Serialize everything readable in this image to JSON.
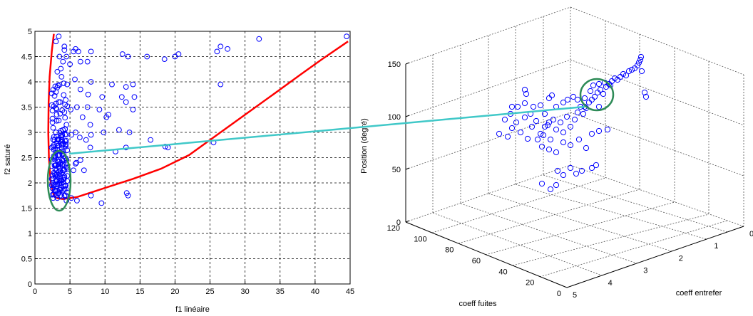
{
  "chart_data": [
    {
      "type": "scatter",
      "title": "",
      "xlabel": "f1 linéaire",
      "ylabel": "f2 saturé",
      "xlim": [
        0,
        45
      ],
      "ylim": [
        0,
        5
      ],
      "xticks": [
        "0",
        "5",
        "10",
        "15",
        "20",
        "25",
        "30",
        "35",
        "40",
        "45"
      ],
      "yticks": [
        "0",
        "0.5",
        "1",
        "1.5",
        "2",
        "2.5",
        "3",
        "3.5",
        "4",
        "4.5",
        "5"
      ],
      "grid": true,
      "marker_color": "#0000ff",
      "curve_color": "#ff0000",
      "highlight_color": "#2e8b57",
      "points": [
        [
          3.0,
          4.8
        ],
        [
          3.4,
          4.9
        ],
        [
          4.2,
          4.7
        ],
        [
          5.5,
          4.6
        ],
        [
          5.8,
          4.65
        ],
        [
          6.2,
          4.6
        ],
        [
          8,
          4.6
        ],
        [
          12.5,
          4.55
        ],
        [
          13.3,
          4.5
        ],
        [
          16,
          4.5
        ],
        [
          18.5,
          4.45
        ],
        [
          20,
          4.5
        ],
        [
          20.5,
          4.55
        ],
        [
          26,
          4.6
        ],
        [
          26.5,
          4.7
        ],
        [
          27.5,
          4.65
        ],
        [
          32,
          4.85
        ],
        [
          44.5,
          4.9
        ],
        [
          3.5,
          4.5
        ],
        [
          4.5,
          4.5
        ],
        [
          4.0,
          4.4
        ],
        [
          5.0,
          4.35
        ],
        [
          6.5,
          4.4
        ],
        [
          7.5,
          4.4
        ],
        [
          5.7,
          4.05
        ],
        [
          8,
          4.0
        ],
        [
          11,
          3.95
        ],
        [
          13,
          3.9
        ],
        [
          14,
          3.95
        ],
        [
          26.5,
          3.95
        ],
        [
          3.2,
          4.2
        ],
        [
          3.8,
          4.1
        ],
        [
          4.6,
          3.95
        ],
        [
          6.5,
          3.85
        ],
        [
          7.6,
          3.75
        ],
        [
          9.6,
          3.7
        ],
        [
          12.4,
          3.7
        ],
        [
          14.2,
          3.7
        ],
        [
          13,
          3.6
        ],
        [
          3.4,
          3.6
        ],
        [
          4.3,
          3.55
        ],
        [
          5.1,
          3.45
        ],
        [
          6.0,
          3.5
        ],
        [
          7.5,
          3.5
        ],
        [
          9.2,
          3.45
        ],
        [
          10.5,
          3.35
        ],
        [
          14,
          3.45
        ],
        [
          3.1,
          3.35
        ],
        [
          6.8,
          3.3
        ],
        [
          10.2,
          3.3
        ],
        [
          7.9,
          3.15
        ],
        [
          12,
          3.05
        ],
        [
          13.5,
          3.0
        ],
        [
          9.8,
          3.0
        ],
        [
          3.0,
          3.0
        ],
        [
          4.0,
          3.05
        ],
        [
          5.2,
          2.95
        ],
        [
          5.8,
          3.0
        ],
        [
          6.4,
          2.9
        ],
        [
          8,
          2.95
        ],
        [
          7.3,
          2.85
        ],
        [
          16.5,
          2.85
        ],
        [
          3.3,
          2.85
        ],
        [
          4.4,
          2.75
        ],
        [
          7.9,
          2.7
        ],
        [
          13,
          2.7
        ],
        [
          18.6,
          2.72
        ],
        [
          19,
          2.7
        ],
        [
          25.5,
          2.8
        ],
        [
          11.5,
          2.62
        ],
        [
          6.5,
          2.45
        ],
        [
          5.9,
          2.4
        ],
        [
          5.8,
          2.38
        ],
        [
          3.9,
          2.45
        ],
        [
          4.6,
          2.3
        ],
        [
          5.5,
          2.25
        ],
        [
          7,
          2.25
        ],
        [
          2.6,
          1.7
        ],
        [
          2.8,
          1.85
        ],
        [
          3.0,
          1.75
        ],
        [
          3.2,
          1.7
        ],
        [
          3.4,
          1.8
        ],
        [
          3.5,
          2.0
        ],
        [
          3.7,
          1.9
        ],
        [
          3.8,
          2.05
        ],
        [
          4.0,
          1.85
        ],
        [
          2.7,
          2.2
        ],
        [
          2.9,
          2.35
        ],
        [
          3.1,
          2.25
        ],
        [
          3.3,
          2.15
        ],
        [
          3.6,
          2.3
        ],
        [
          3.9,
          2.2
        ],
        [
          2.8,
          2.5
        ],
        [
          3.0,
          2.6
        ],
        [
          3.2,
          2.45
        ],
        [
          3.5,
          2.55
        ],
        [
          3.7,
          2.4
        ],
        [
          4.2,
          2.1
        ],
        [
          4.4,
          1.95
        ],
        [
          2.6,
          2.0
        ],
        [
          3.0,
          2.05
        ],
        [
          3.4,
          2.1
        ],
        [
          3.6,
          1.75
        ],
        [
          6.0,
          1.65
        ],
        [
          8.0,
          1.75
        ],
        [
          9.5,
          1.6
        ],
        [
          13.1,
          1.8
        ],
        [
          13.3,
          1.75
        ],
        [
          4.5,
          1.65
        ],
        [
          5.2,
          1.7
        ]
      ],
      "curve_a": [
        [
          3.1,
          1.7
        ],
        [
          2.7,
          1.75
        ],
        [
          2.25,
          2.0
        ],
        [
          2.0,
          2.5
        ],
        [
          1.9,
          3.0
        ],
        [
          1.95,
          3.6
        ],
        [
          2.1,
          4.1
        ],
        [
          2.4,
          4.6
        ],
        [
          2.7,
          4.95
        ]
      ],
      "curve_b": [
        [
          3.1,
          1.7
        ],
        [
          4,
          1.68
        ],
        [
          6,
          1.72
        ],
        [
          10,
          1.9
        ],
        [
          14,
          2.08
        ],
        [
          18,
          2.28
        ],
        [
          22,
          2.55
        ],
        [
          26,
          2.95
        ],
        [
          30,
          3.35
        ],
        [
          34,
          3.75
        ],
        [
          38,
          4.15
        ],
        [
          41,
          4.45
        ],
        [
          44.7,
          4.8
        ]
      ]
    },
    {
      "type": "scatter",
      "title": "",
      "xlabel": "coeff entrefer",
      "ylabel": "coeff fuites",
      "zlabel": "Position (degré)",
      "xticks": [
        "0",
        "1",
        "2",
        "3",
        "4",
        "5"
      ],
      "yticks": [
        "0",
        "20",
        "40",
        "60",
        "80",
        "100",
        "120"
      ],
      "zticks": [
        "0",
        "50",
        "100",
        "150"
      ],
      "grid": true,
      "marker_color": "#0000ff",
      "connector_color": "#40c8c8",
      "highlight_color": "#2e8b57"
    }
  ]
}
